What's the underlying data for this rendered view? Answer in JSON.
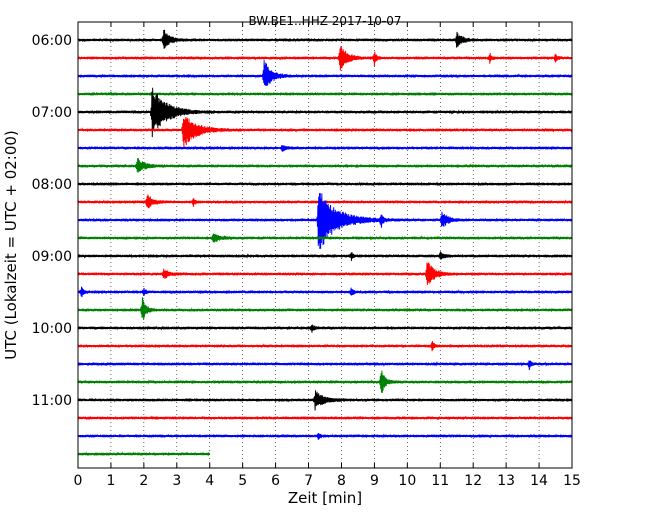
{
  "chart_data": {
    "type": "line",
    "title": "BW.BE1..HHZ 2017-10-07",
    "xlabel": "Zeit  [min]",
    "ylabel": "UTC (Lokalzeit = UTC + 02:00)",
    "xlim": [
      0,
      15
    ],
    "x_ticks": [
      "0",
      "1",
      "2",
      "3",
      "4",
      "5",
      "6",
      "7",
      "8",
      "9",
      "10",
      "11",
      "12",
      "13",
      "14",
      "15"
    ],
    "y_ticks": [
      {
        "label": "06:00",
        "trace": 0
      },
      {
        "label": "07:00",
        "trace": 4
      },
      {
        "label": "08:00",
        "trace": 8
      },
      {
        "label": "09:00",
        "trace": 12
      },
      {
        "label": "10:00",
        "trace": 16
      },
      {
        "label": "11:00",
        "trace": 20
      }
    ],
    "grid": {
      "vertical_dotted": true
    },
    "colors": [
      "#000000",
      "#ff0000",
      "#0000ff",
      "#008000"
    ],
    "trace_minutes": 15,
    "series": [
      {
        "start": "06:00",
        "end_min": 15,
        "events": [
          {
            "t": 2.6,
            "amp": 12,
            "dur": 0.3
          },
          {
            "t": 11.5,
            "amp": 8,
            "dur": 0.3
          }
        ]
      },
      {
        "start": "06:15",
        "end_min": 15,
        "events": [
          {
            "t": 7.95,
            "amp": 14,
            "dur": 0.4
          },
          {
            "t": 9.0,
            "amp": 8,
            "dur": 0.1
          },
          {
            "t": 12.5,
            "amp": 5,
            "dur": 0.1
          },
          {
            "t": 14.5,
            "amp": 5,
            "dur": 0.1
          }
        ]
      },
      {
        "start": "06:30",
        "end_min": 15,
        "events": [
          {
            "t": 5.65,
            "amp": 16,
            "dur": 0.4
          }
        ]
      },
      {
        "start": "06:45",
        "end_min": 15,
        "events": []
      },
      {
        "start": "07:00",
        "end_min": 15,
        "events": [
          {
            "t": 2.25,
            "amp": 26,
            "dur": 0.8
          }
        ]
      },
      {
        "start": "07:15",
        "end_min": 15,
        "events": [
          {
            "t": 3.2,
            "amp": 18,
            "dur": 0.7
          }
        ]
      },
      {
        "start": "07:30",
        "end_min": 15,
        "events": [
          {
            "t": 6.2,
            "amp": 3,
            "dur": 0.2
          }
        ]
      },
      {
        "start": "07:45",
        "end_min": 15,
        "events": [
          {
            "t": 1.8,
            "amp": 8,
            "dur": 0.4
          }
        ]
      },
      {
        "start": "08:00",
        "end_min": 15,
        "events": []
      },
      {
        "start": "08:15",
        "end_min": 15,
        "events": [
          {
            "t": 2.1,
            "amp": 8,
            "dur": 0.3
          },
          {
            "t": 3.5,
            "amp": 4,
            "dur": 0.1
          }
        ]
      },
      {
        "start": "08:30",
        "end_min": 15,
        "events": [
          {
            "t": 7.3,
            "amp": 32,
            "dur": 1.0
          },
          {
            "t": 9.2,
            "amp": 8,
            "dur": 0.1
          },
          {
            "t": 11.05,
            "amp": 9,
            "dur": 0.3
          }
        ]
      },
      {
        "start": "08:45",
        "end_min": 15,
        "events": [
          {
            "t": 4.1,
            "amp": 4,
            "dur": 0.4
          }
        ]
      },
      {
        "start": "09:00",
        "end_min": 15,
        "events": [
          {
            "t": 8.3,
            "amp": 4,
            "dur": 0.1
          },
          {
            "t": 11.0,
            "amp": 4,
            "dur": 0.2
          }
        ]
      },
      {
        "start": "09:15",
        "end_min": 15,
        "events": [
          {
            "t": 2.6,
            "amp": 5,
            "dur": 0.3
          },
          {
            "t": 10.6,
            "amp": 13,
            "dur": 0.4
          }
        ]
      },
      {
        "start": "09:30",
        "end_min": 15,
        "events": [
          {
            "t": 0.1,
            "amp": 6,
            "dur": 0.1
          },
          {
            "t": 2.0,
            "amp": 4,
            "dur": 0.1
          },
          {
            "t": 8.3,
            "amp": 5,
            "dur": 0.1
          }
        ]
      },
      {
        "start": "09:45",
        "end_min": 15,
        "events": [
          {
            "t": 1.95,
            "amp": 13,
            "dur": 0.2
          }
        ]
      },
      {
        "start": "10:00",
        "end_min": 15,
        "events": [
          {
            "t": 7.1,
            "amp": 5,
            "dur": 0.1
          }
        ]
      },
      {
        "start": "10:15",
        "end_min": 15,
        "events": [
          {
            "t": 10.75,
            "amp": 6,
            "dur": 0.1
          }
        ]
      },
      {
        "start": "10:30",
        "end_min": 15,
        "events": [
          {
            "t": 13.7,
            "amp": 5,
            "dur": 0.1
          }
        ]
      },
      {
        "start": "10:45",
        "end_min": 15,
        "events": [
          {
            "t": 9.2,
            "amp": 15,
            "dur": 0.2
          }
        ]
      },
      {
        "start": "11:00",
        "end_min": 15,
        "events": [
          {
            "t": 7.2,
            "amp": 9,
            "dur": 0.5
          }
        ]
      },
      {
        "start": "11:15",
        "end_min": 15,
        "events": []
      },
      {
        "start": "11:30",
        "end_min": 15,
        "events": [
          {
            "t": 7.3,
            "amp": 3,
            "dur": 0.1
          }
        ]
      },
      {
        "start": "11:45",
        "end_min": 4.0,
        "events": []
      }
    ]
  }
}
